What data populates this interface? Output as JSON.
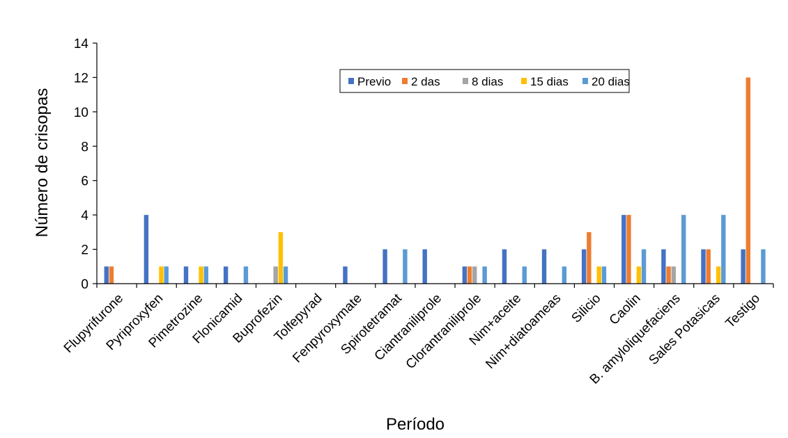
{
  "chart_data": {
    "type": "bar",
    "title": "",
    "xlabel": "Período",
    "ylabel": "Número de crisopas",
    "ylim": [
      0,
      14
    ],
    "yticks": [
      0,
      2,
      4,
      6,
      8,
      10,
      12,
      14
    ],
    "grid": false,
    "legend_position": "top-right",
    "categories": [
      "Flupyrifurone",
      "Pyriproxyfen",
      "Pimetrozine",
      "Flonicamid",
      "Buprofezin",
      "Tolfepyrad",
      "Fenpyroxymate",
      "Spirotetramat",
      "Ciantraniliprole",
      "Clorantraniliprole",
      "Nim+aceite",
      "Nim+diatoameas",
      "Silicio",
      "Caolin",
      "B. amyloliquefaciens",
      "Sales Potasicas",
      "Testigo"
    ],
    "series": [
      {
        "name": "Previo",
        "color": "#4472C4",
        "values": [
          1,
          4,
          1,
          1,
          0,
          0,
          1,
          2,
          2,
          1,
          2,
          2,
          2,
          4,
          2,
          2,
          2
        ]
      },
      {
        "name": "2 das",
        "color": "#ED7D31",
        "values": [
          1,
          0,
          0,
          0,
          0,
          0,
          0,
          0,
          0,
          1,
          0,
          0,
          3,
          4,
          1,
          2,
          12
        ]
      },
      {
        "name": "8 dias",
        "color": "#A5A5A5",
        "values": [
          0,
          0,
          0,
          0,
          1,
          0,
          0,
          0,
          0,
          1,
          0,
          0,
          0,
          0,
          1,
          0,
          0
        ]
      },
      {
        "name": "15 dias",
        "color": "#FFC000",
        "values": [
          0,
          1,
          1,
          0,
          3,
          0,
          0,
          0,
          0,
          0,
          0,
          0,
          1,
          1,
          0,
          1,
          0
        ]
      },
      {
        "name": "20 dias",
        "color": "#5B9BD5",
        "values": [
          0,
          1,
          1,
          1,
          1,
          0,
          0,
          2,
          0,
          1,
          1,
          1,
          1,
          2,
          4,
          4,
          2
        ]
      }
    ]
  }
}
